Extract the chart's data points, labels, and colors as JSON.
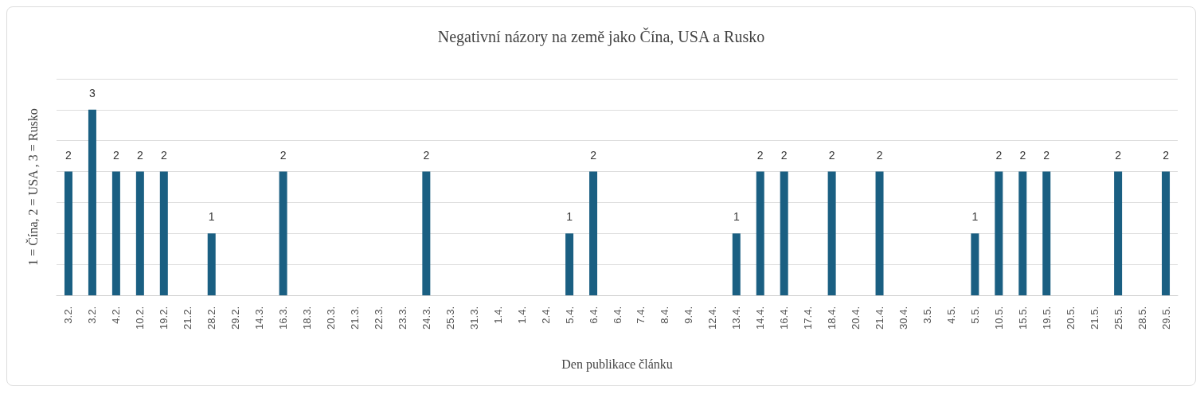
{
  "chart_data": {
    "type": "bar",
    "title": "Negativní názory na země jako Čína, USA a Rusko",
    "xlabel": "Den publikace článku",
    "ylabel": "1 = Čína, 2 = USA , 3 = Rusko",
    "categories": [
      "3.2.",
      "3.2.",
      "4.2.",
      "10.2.",
      "19.2.",
      "21.2.",
      "28.2.",
      "29.2.",
      "14.3.",
      "16.3.",
      "18.3.",
      "20.3.",
      "21.3.",
      "22.3.",
      "23.3.",
      "24.3.",
      "25.3.",
      "31.3.",
      "1.4.",
      "1.4.",
      "2.4.",
      "5.4.",
      "6.4.",
      "6.4.",
      "7.4.",
      "8.4.",
      "9.4.",
      "12.4.",
      "13.4.",
      "14.4.",
      "16.4.",
      "17.4.",
      "18.4.",
      "20.4.",
      "21.4.",
      "30.4.",
      "3.5.",
      "4.5.",
      "5.5.",
      "10.5.",
      "15.5.",
      "19.5.",
      "20.5.",
      "21.5.",
      "25.5.",
      "28.5.",
      "29.5."
    ],
    "values": [
      2,
      3,
      2,
      2,
      2,
      null,
      1,
      null,
      null,
      2,
      null,
      null,
      null,
      null,
      null,
      2,
      null,
      null,
      null,
      null,
      null,
      1,
      2,
      null,
      null,
      null,
      null,
      null,
      1,
      2,
      2,
      null,
      2,
      null,
      2,
      null,
      null,
      null,
      1,
      2,
      2,
      2,
      null,
      null,
      2,
      null,
      2
    ],
    "color": "#1a5f82",
    "ylim": [
      0,
      3.5
    ],
    "yticks": [
      {
        "value": 0,
        "label": null
      },
      {
        "value": 0.5,
        "label": null
      },
      {
        "value": 1,
        "label": null
      },
      {
        "value": 1.5,
        "label": null
      },
      {
        "value": 2,
        "label": null
      },
      {
        "value": 2.5,
        "label": null
      },
      {
        "value": 3,
        "label": null
      },
      {
        "value": 3.5,
        "label": null
      }
    ],
    "tick_labels": "x",
    "grid": "y",
    "data_labels": true
  }
}
